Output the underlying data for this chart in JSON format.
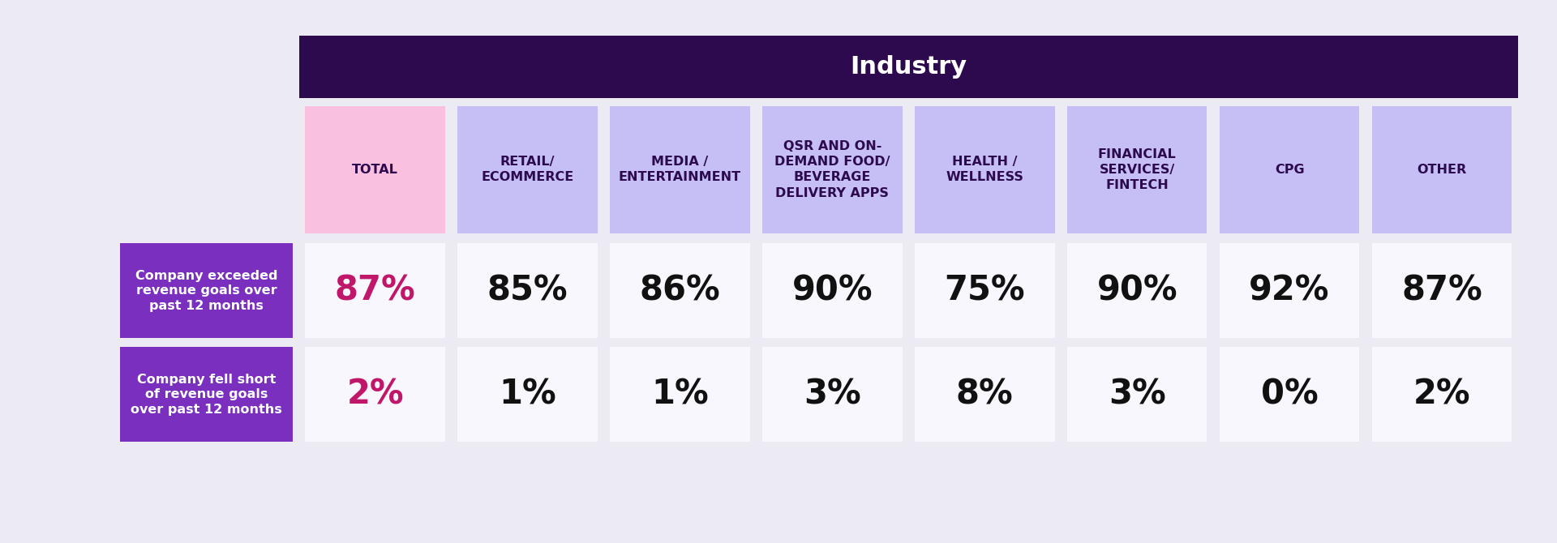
{
  "title": "Industry",
  "title_bg": "#2d0a4e",
  "title_color": "#ffffff",
  "bg_color": "#eceaf2",
  "col_headers": [
    "TOTAL",
    "RETAIL/\nECOMMERCE",
    "MEDIA /\nENTERTAINMENT",
    "QSR AND ON-\nDEMAND FOOD/\nBEVERAGE\nDELIVERY APPS",
    "HEALTH /\nWELLNESS",
    "FINANCIAL\nSERVICES/\nFINTECH",
    "CPG",
    "OTHER"
  ],
  "col_header_bg": [
    "#f9c0e0",
    "#c5bff5",
    "#c5bff5",
    "#c5bff5",
    "#c5bff5",
    "#c5bff5",
    "#c5bff5",
    "#c5bff5"
  ],
  "col_header_color": "#2d0a4e",
  "row_labels": [
    "Company exceeded\nrevenue goals over\npast 12 months",
    "Company fell short\nof revenue goals\nover past 12 months"
  ],
  "row_label_bg": "#7b2fbe",
  "row_label_color": "#ffffff",
  "row1_values": [
    "87%",
    "85%",
    "86%",
    "90%",
    "75%",
    "90%",
    "92%",
    "87%"
  ],
  "row2_values": [
    "2%",
    "1%",
    "1%",
    "3%",
    "8%",
    "3%",
    "0%",
    "2%"
  ],
  "data_bg": "#f8f7fd",
  "data_color_total": "#c0176a",
  "data_color_rest": "#111111",
  "data_fontsize": 30,
  "header_fontsize": 11.5,
  "row_label_fontsize": 11.5,
  "title_fontsize": 22
}
